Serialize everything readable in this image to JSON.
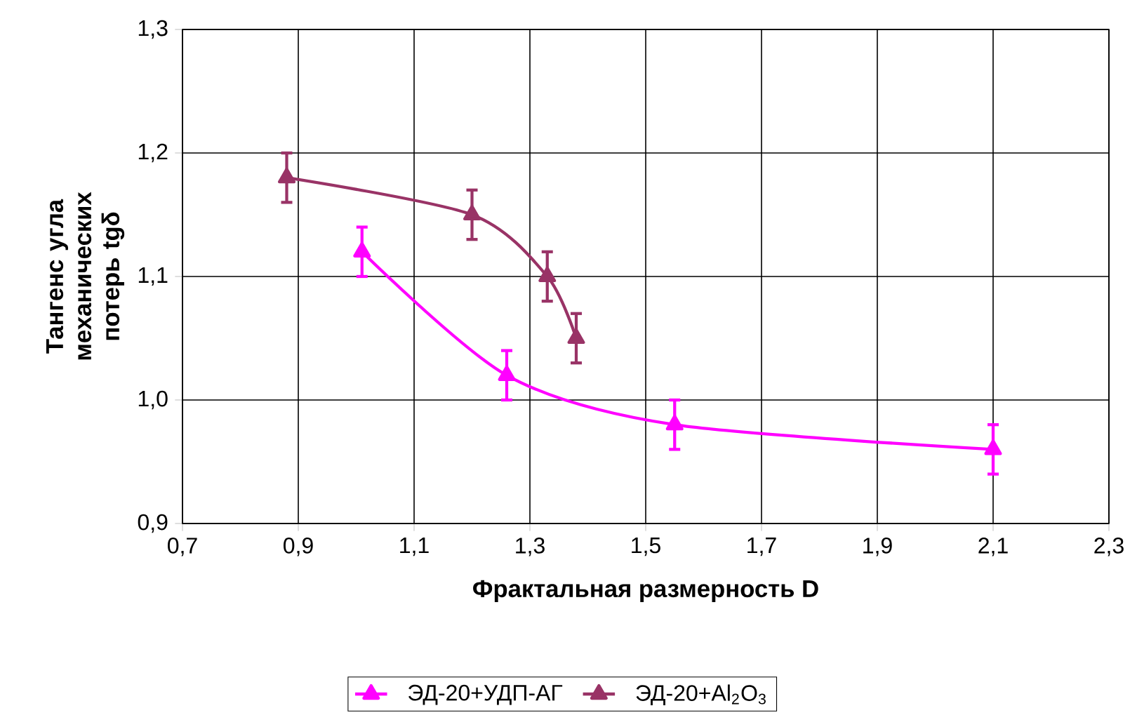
{
  "chart_data": {
    "type": "line",
    "xlabel": "Фрактальная размерность D",
    "ylabel": "Тангенс угла механических потерь tgδ",
    "xlim": [
      0.7,
      2.3
    ],
    "ylim": [
      0.9,
      1.3
    ],
    "xticks": [
      {
        "value": 0.7,
        "label": "0,7"
      },
      {
        "value": 0.9,
        "label": "0,9"
      },
      {
        "value": 1.1,
        "label": "1,1"
      },
      {
        "value": 1.3,
        "label": "1,3"
      },
      {
        "value": 1.5,
        "label": "1,5"
      },
      {
        "value": 1.7,
        "label": "1,7"
      },
      {
        "value": 1.9,
        "label": "1,9"
      },
      {
        "value": 2.1,
        "label": "2,1"
      },
      {
        "value": 2.3,
        "label": "2,3"
      }
    ],
    "yticks": [
      {
        "value": 0.9,
        "label": "0,9"
      },
      {
        "value": 1.0,
        "label": "1,0"
      },
      {
        "value": 1.1,
        "label": "1,1"
      },
      {
        "value": 1.2,
        "label": "1,2"
      },
      {
        "value": 1.3,
        "label": "1,3"
      }
    ],
    "grid": true,
    "legend": "bottom",
    "marker": "triangle",
    "series": [
      {
        "name": "ЭД-20+УДП-АГ",
        "color": "#ff00ff",
        "x": [
          1.01,
          1.26,
          1.55,
          2.1
        ],
        "values": [
          1.12,
          1.02,
          0.98,
          0.96
        ],
        "errors": [
          0.02,
          0.02,
          0.02,
          0.02
        ]
      },
      {
        "name": "ЭД-20+Al$_{2}$O$_{3}$",
        "color": "#993366",
        "x": [
          0.88,
          1.2,
          1.33,
          1.38
        ],
        "values": [
          1.18,
          1.15,
          1.1,
          1.05
        ],
        "errors": [
          0.02,
          0.02,
          0.02,
          0.02
        ]
      }
    ]
  }
}
